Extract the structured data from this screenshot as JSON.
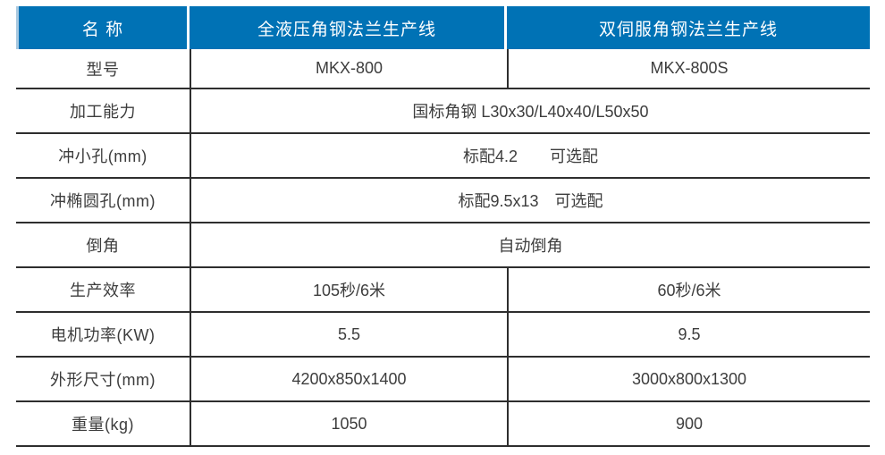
{
  "table": {
    "colors": {
      "header_bg": "#0072b5",
      "header_text": "#ffffff",
      "body_text": "#3d3d3d",
      "grid_line": "#2e2e2e",
      "header_left_edge": "#a9c9e0",
      "page_bg": "#ffffff"
    },
    "header": {
      "name_col": "名 称",
      "product_a": "全液压角钢法兰生产线",
      "product_b": "双伺服角钢法兰生产线"
    },
    "rows": [
      {
        "label": "型号",
        "type": "split",
        "left": "MKX-800",
        "right": "MKX-800S"
      },
      {
        "label": "加工能力",
        "type": "merged",
        "value": "国标角钢 L30x30/L40x40/L50x50"
      },
      {
        "label": "冲小孔(mm)",
        "type": "merged",
        "value": "标配4.2　　可选配"
      },
      {
        "label": "冲椭圆孔(mm)",
        "type": "merged",
        "value": "标配9.5x13　可选配"
      },
      {
        "label": "倒角",
        "type": "merged",
        "value": "自动倒角"
      },
      {
        "label": "生产效率",
        "type": "split",
        "left": "105秒/6米",
        "right": "60秒/6米"
      },
      {
        "label": "电机功率(KW)",
        "type": "split",
        "left": "5.5",
        "right": "9.5"
      },
      {
        "label": "外形尺寸(mm)",
        "type": "split",
        "left": "4200x850x1400",
        "right": "3000x800x1300"
      },
      {
        "label": "重量(kg)",
        "type": "split",
        "left": "1050",
        "right": "900"
      }
    ]
  }
}
